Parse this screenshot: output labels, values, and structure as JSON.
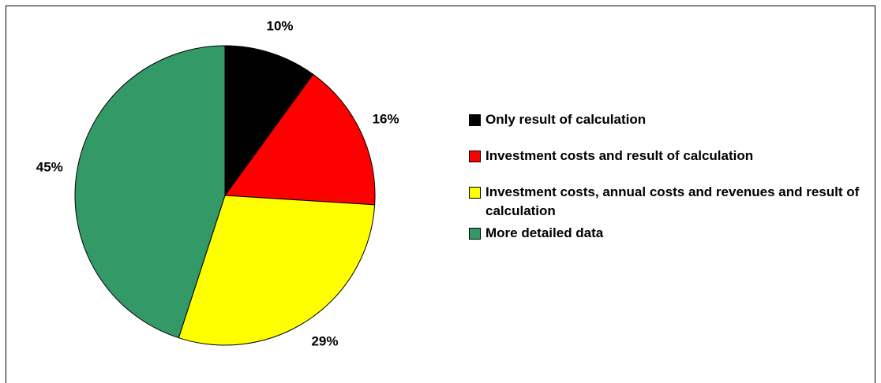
{
  "chart_data": {
    "type": "pie",
    "categories": [
      "Only result of calculation",
      "Investment costs and result of calculation",
      "Investment costs, annual costs and revenues and result of calculation",
      "More detailed data"
    ],
    "values": [
      10,
      16,
      29,
      45
    ],
    "value_labels": [
      "10%",
      "16%",
      "29%",
      "45%"
    ],
    "colors": [
      "#000000",
      "#ff0000",
      "#ffff00",
      "#339966"
    ],
    "legend": "right"
  }
}
